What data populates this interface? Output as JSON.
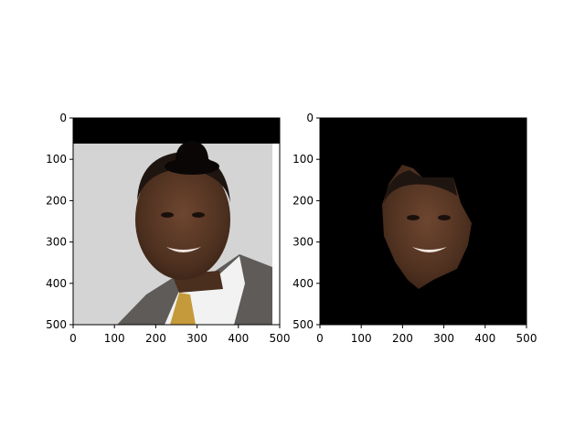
{
  "figure": {
    "panels": [
      {
        "name": "original-photo-with-hat",
        "image_description_tag": "portrait-photo-with-bowler-hat",
        "x_ticks": [
          "0",
          "100",
          "200",
          "300",
          "400",
          "500"
        ],
        "y_ticks": [
          "0",
          "100",
          "200",
          "300",
          "400",
          "500"
        ],
        "x_range": [
          0,
          500
        ],
        "y_range": [
          0,
          500
        ]
      },
      {
        "name": "masked-face",
        "image_description_tag": "face-cutout-on-black",
        "x_ticks": [
          "0",
          "100",
          "200",
          "300",
          "400",
          "500"
        ],
        "y_ticks": [
          "0",
          "100",
          "200",
          "300",
          "400",
          "500"
        ],
        "x_range": [
          0,
          500
        ],
        "y_range": [
          0,
          500
        ]
      }
    ],
    "colors": {
      "background": "#ffffff",
      "mask_black": "#000000",
      "photo_background": "#d2d2d2",
      "suit": "#5e5e5e",
      "shirt": "#f4f4f4",
      "tie": "#c49a3a",
      "skin": "#5b3a26",
      "hat": "#0b0606"
    }
  }
}
